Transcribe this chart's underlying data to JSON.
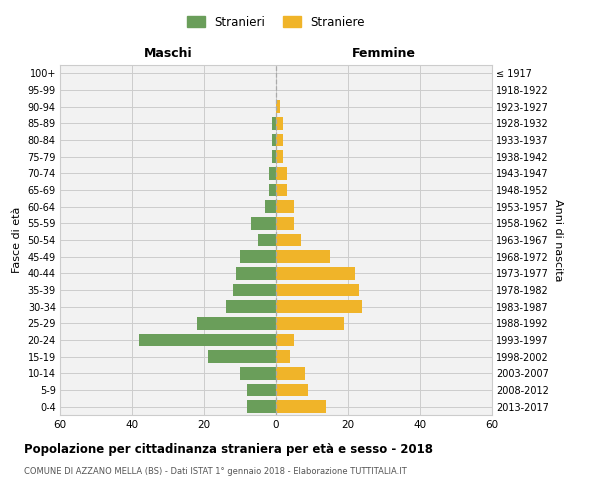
{
  "age_groups": [
    "0-4",
    "5-9",
    "10-14",
    "15-19",
    "20-24",
    "25-29",
    "30-34",
    "35-39",
    "40-44",
    "45-49",
    "50-54",
    "55-59",
    "60-64",
    "65-69",
    "70-74",
    "75-79",
    "80-84",
    "85-89",
    "90-94",
    "95-99",
    "100+"
  ],
  "birth_years": [
    "2013-2017",
    "2008-2012",
    "2003-2007",
    "1998-2002",
    "1993-1997",
    "1988-1992",
    "1983-1987",
    "1978-1982",
    "1973-1977",
    "1968-1972",
    "1963-1967",
    "1958-1962",
    "1953-1957",
    "1948-1952",
    "1943-1947",
    "1938-1942",
    "1933-1937",
    "1928-1932",
    "1923-1927",
    "1918-1922",
    "≤ 1917"
  ],
  "maschi": [
    8,
    8,
    10,
    19,
    38,
    22,
    14,
    12,
    11,
    10,
    5,
    7,
    3,
    2,
    2,
    1,
    1,
    1,
    0,
    0,
    0
  ],
  "femmine": [
    14,
    9,
    8,
    4,
    5,
    19,
    24,
    23,
    22,
    15,
    7,
    5,
    5,
    3,
    3,
    2,
    2,
    2,
    1,
    0,
    0
  ],
  "color_maschi": "#6a9e5a",
  "color_femmine": "#f0b429",
  "background_color": "#f2f2f2",
  "grid_color": "#cccccc",
  "title": "Popolazione per cittadinanza straniera per età e sesso - 2018",
  "subtitle": "COMUNE DI AZZANO MELLA (BS) - Dati ISTAT 1° gennaio 2018 - Elaborazione TUTTITALIA.IT",
  "xlabel_left": "Maschi",
  "xlabel_right": "Femmine",
  "ylabel_left": "Fasce di età",
  "ylabel_right": "Anni di nascita",
  "legend_maschi": "Stranieri",
  "legend_femmine": "Straniere",
  "xlim": 60
}
